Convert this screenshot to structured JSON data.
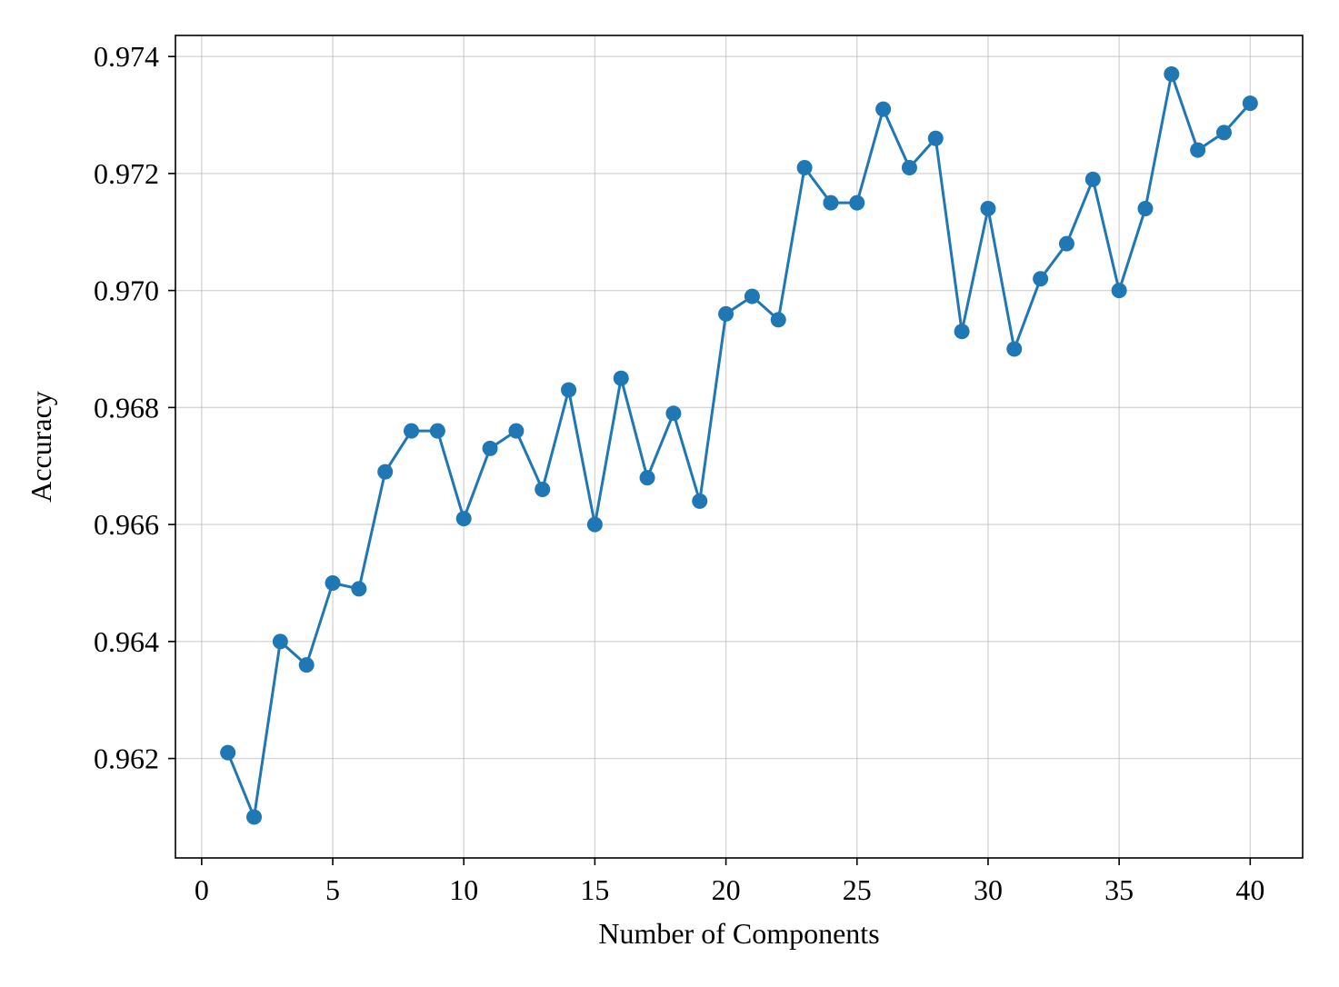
{
  "chart_data": {
    "type": "line",
    "title": "",
    "xlabel": "Number of Components",
    "ylabel": "Accuracy",
    "xlim": [
      -1,
      42
    ],
    "ylim": [
      0.9603,
      0.97436
    ],
    "xticks": [
      0,
      5,
      10,
      15,
      20,
      25,
      30,
      35,
      40
    ],
    "yticks": [
      0.962,
      0.964,
      0.966,
      0.968,
      0.97,
      0.972,
      0.974
    ],
    "xtick_labels": [
      "0",
      "5",
      "10",
      "15",
      "20",
      "25",
      "30",
      "35",
      "40"
    ],
    "ytick_labels": [
      "0.962",
      "0.964",
      "0.966",
      "0.968",
      "0.970",
      "0.972",
      "0.974"
    ],
    "grid": true,
    "legend": "none",
    "series": [
      {
        "color": "#1f77b4",
        "marker": "circle",
        "x": [
          1,
          2,
          3,
          4,
          5,
          6,
          7,
          8,
          9,
          10,
          11,
          12,
          13,
          14,
          15,
          16,
          17,
          18,
          19,
          20,
          21,
          22,
          23,
          24,
          25,
          26,
          27,
          28,
          29,
          30,
          31,
          32,
          33,
          34,
          35,
          36,
          37,
          38,
          39,
          40
        ],
        "y": [
          0.9621,
          0.961,
          0.964,
          0.9636,
          0.965,
          0.9649,
          0.9669,
          0.9676,
          0.9676,
          0.9661,
          0.9673,
          0.9676,
          0.9666,
          0.9683,
          0.966,
          0.9685,
          0.9668,
          0.9679,
          0.9664,
          0.9696,
          0.9699,
          0.9695,
          0.9721,
          0.9715,
          0.9715,
          0.9731,
          0.9721,
          0.9726,
          0.9693,
          0.9714,
          0.969,
          0.9702,
          0.9708,
          0.9719,
          0.97,
          0.9714,
          0.9737,
          0.9724,
          0.9727,
          0.9732
        ]
      }
    ]
  }
}
